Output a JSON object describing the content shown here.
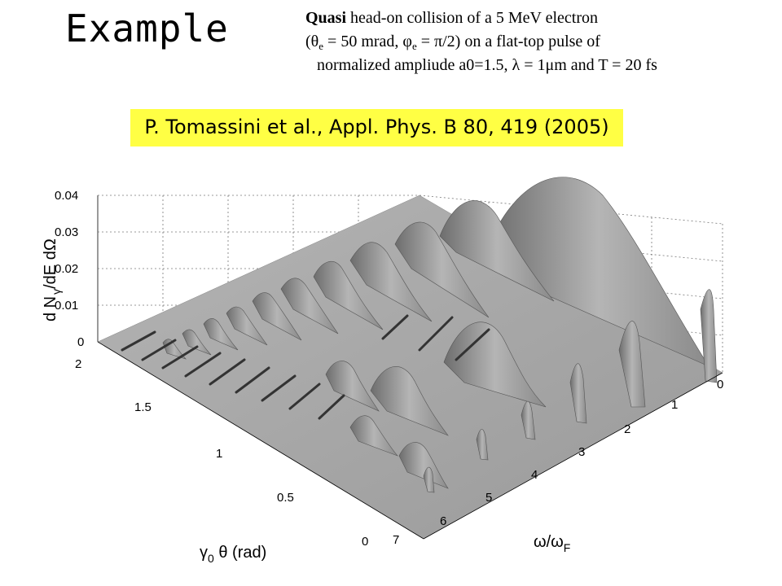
{
  "title": "Example",
  "description": {
    "line1_bold": "Quasi",
    "line1_rest": " head-on collision of a 5 MeV electron",
    "line2": "(θe = 50 mrad, φe = π/2) on  a flat-top pulse of",
    "line3": "normalized ampliude a0=1.5, λ = 1μm and T = 20 fs",
    "theta": "θ",
    "phi": "φ",
    "sub_e": "e",
    "line2_a": "(",
    "line2_b": " = 50 mrad, ",
    "line2_c": " = π/2) on  a flat-top pulse of"
  },
  "reference": "P. Tomassini et al., Appl. Phys. B 80, 419 (2005)",
  "plot": {
    "z_ticks": [
      "0",
      "0.01",
      "0.02",
      "0.03",
      "0.04"
    ],
    "theta_ticks": [
      "0",
      "0.5",
      "1",
      "1.5",
      "2"
    ],
    "omega_ticks": [
      "0",
      "1",
      "2",
      "3",
      "4",
      "5",
      "6",
      "7"
    ],
    "z_label": "d N",
    "z_label_sub": "γ",
    "z_label_rest": "/dE dΩ",
    "theta_label_a": "γ",
    "theta_label_sub": "0",
    "theta_label_b": " θ (rad)",
    "omega_label_a": "ω/ω",
    "omega_label_sub": "F",
    "surface_color": "#a9a9a9"
  }
}
